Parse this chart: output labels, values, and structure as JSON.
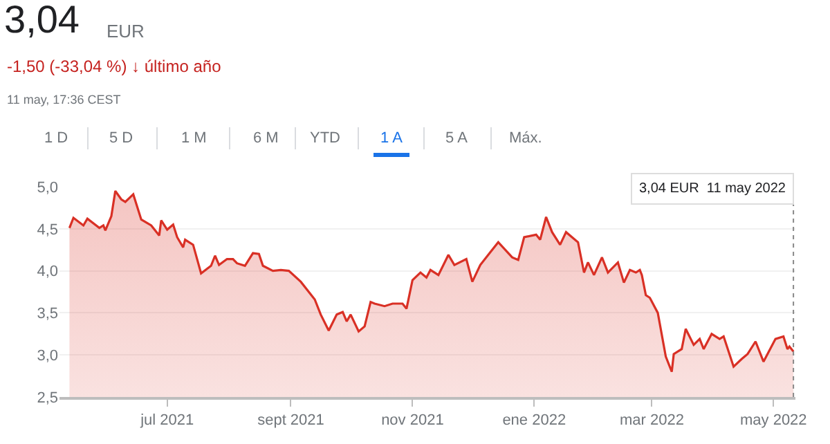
{
  "chart_data": {
    "type": "area",
    "title": "3,04",
    "annotations": [
      "EUR",
      "-1,50 (-33,04 %) ↓ último año",
      "11 may, 17:36 CEST",
      "1 D",
      "5 D",
      "1 M",
      "6 M",
      "YTD",
      "1 A",
      "5 A",
      "Máx."
    ],
    "x": [
      "2021-05-13",
      "2021-05-15",
      "2021-05-20",
      "2021-05-22",
      "2021-05-28",
      "2021-05-30",
      "2021-05-31",
      "2021-06-03",
      "2021-06-05",
      "2021-06-08",
      "2021-06-10",
      "2021-06-14",
      "2021-06-18",
      "2021-06-23",
      "2021-06-27",
      "2021-06-28",
      "2021-07-01",
      "2021-07-04",
      "2021-07-06",
      "2021-07-09",
      "2021-07-10",
      "2021-07-14",
      "2021-07-18",
      "2021-07-23",
      "2021-07-25",
      "2021-07-27",
      "2021-07-31",
      "2021-08-03",
      "2021-08-05",
      "2021-08-09",
      "2021-08-13",
      "2021-08-16",
      "2021-08-18",
      "2021-08-23",
      "2021-08-27",
      "2021-08-31",
      "2021-09-06",
      "2021-09-13",
      "2021-09-16",
      "2021-09-20",
      "2021-09-24",
      "2021-09-27",
      "2021-09-29",
      "2021-10-01",
      "2021-10-05",
      "2021-10-08",
      "2021-10-11",
      "2021-10-13",
      "2021-10-18",
      "2021-10-22",
      "2021-10-27",
      "2021-10-29",
      "2021-11-01",
      "2021-11-05",
      "2021-11-08",
      "2021-11-10",
      "2021-11-14",
      "2021-11-19",
      "2021-11-22",
      "2021-11-28",
      "2021-12-01",
      "2021-12-05",
      "2021-12-10",
      "2021-12-14",
      "2021-12-21",
      "2021-12-24",
      "2021-12-27",
      "2022-01-02",
      "2022-01-04",
      "2022-01-07",
      "2022-01-10",
      "2022-01-14",
      "2022-01-17",
      "2022-01-23",
      "2022-01-26",
      "2022-01-28",
      "2022-01-31",
      "2022-02-04",
      "2022-02-07",
      "2022-02-12",
      "2022-02-15",
      "2022-02-18",
      "2022-02-21",
      "2022-02-23",
      "2022-02-24",
      "2022-02-26",
      "2022-02-28",
      "2022-03-04",
      "2022-03-08",
      "2022-03-11",
      "2022-03-12",
      "2022-03-16",
      "2022-03-18",
      "2022-03-22",
      "2022-03-25",
      "2022-03-27",
      "2022-03-31",
      "2022-04-04",
      "2022-04-06",
      "2022-04-11",
      "2022-04-15",
      "2022-04-18",
      "2022-04-22",
      "2022-04-26",
      "2022-05-02",
      "2022-05-06",
      "2022-05-08",
      "2022-05-09",
      "2022-05-11"
    ],
    "series": [
      {
        "color": "#d93025",
        "values": [
          4.51,
          4.63,
          4.54,
          4.62,
          4.51,
          4.54,
          4.48,
          4.65,
          4.95,
          4.85,
          4.82,
          4.91,
          4.61,
          4.54,
          4.42,
          4.6,
          4.49,
          4.55,
          4.4,
          4.28,
          4.37,
          4.31,
          3.97,
          4.06,
          4.18,
          4.07,
          4.14,
          4.14,
          4.09,
          4.06,
          4.21,
          4.2,
          4.06,
          4.0,
          4.01,
          4.0,
          3.87,
          3.66,
          3.48,
          3.29,
          3.48,
          3.51,
          3.4,
          3.48,
          3.28,
          3.34,
          3.63,
          3.61,
          3.58,
          3.61,
          3.61,
          3.55,
          3.89,
          3.98,
          3.92,
          4.01,
          3.95,
          4.19,
          4.07,
          4.14,
          3.87,
          4.07,
          4.22,
          4.34,
          4.16,
          4.13,
          4.4,
          4.43,
          4.37,
          4.64,
          4.46,
          4.31,
          4.46,
          4.34,
          3.98,
          4.1,
          3.95,
          4.16,
          3.98,
          4.1,
          3.86,
          4.01,
          3.98,
          4.01,
          3.95,
          3.71,
          3.68,
          3.5,
          2.98,
          2.8,
          3.01,
          3.07,
          3.31,
          3.12,
          3.19,
          3.07,
          3.25,
          3.19,
          3.22,
          2.86,
          2.95,
          3.01,
          3.16,
          2.92,
          3.19,
          3.22,
          3.07,
          3.1,
          3.04
        ]
      }
    ],
    "xlim": [
      "2021-05-08",
      "2022-05-12"
    ],
    "xticks": [
      {
        "value": "2021-07-01",
        "label": "jul 2021"
      },
      {
        "value": "2021-09-01",
        "label": "sept 2021"
      },
      {
        "value": "2021-11-01",
        "label": "nov 2021"
      },
      {
        "value": "2022-01-01",
        "label": "ene 2022"
      },
      {
        "value": "2022-03-01",
        "label": "mar 2022"
      },
      {
        "value": "2022-05-01",
        "label": "may 2022"
      }
    ],
    "ylim": [
      2.5,
      5.0
    ],
    "yticks": [
      {
        "value": 2.5,
        "label": "2,5"
      },
      {
        "value": 3.0,
        "label": "3,0"
      },
      {
        "value": 3.5,
        "label": "3,5"
      },
      {
        "value": 4.0,
        "label": "4,0"
      },
      {
        "value": 4.5,
        "label": "4,5"
      },
      {
        "value": 5.0,
        "label": "5,0"
      }
    ],
    "ref_lines": [
      {
        "axis": "x",
        "value": "2022-05-11",
        "label": "3,04 EUR  11 may 2022",
        "color": "#888888",
        "line_style": "dotted"
      }
    ],
    "grid": "y",
    "marker": "none",
    "line_style": "solid"
  }
}
